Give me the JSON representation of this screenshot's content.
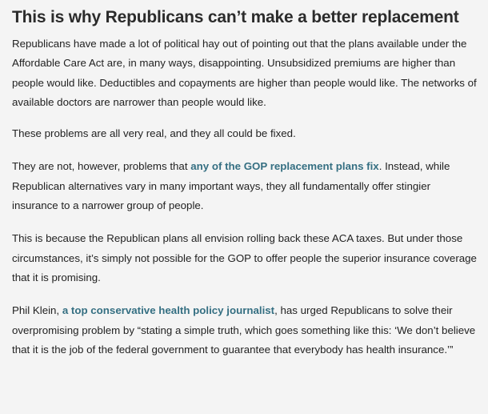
{
  "article": {
    "headline": "This is why Republicans can’t make a better replacement",
    "p1": "Republicans have made a lot of political hay out of pointing out that the plans available under the Affordable Care Act are, in many ways, disappointing. Unsubsidized premiums are higher than people would like. Deductibles and copayments are higher than people would like. The networks of available doctors are narrower than people would like.",
    "p2": "These problems are all very real, and they all could be fixed.",
    "p3": {
      "before": "They are not, however, problems that ",
      "link": "any of the GOP replacement plans fix",
      "after": ". Instead, while Republican alternatives vary in many important ways, they all fundamentally offer stingier insurance to a narrower group of people."
    },
    "p4": "This is because the Republican plans all envision rolling back these ACA taxes. But under those circumstances, it’s simply not possible for the GOP to offer people the superior insurance coverage that it is promising.",
    "p5": {
      "before": "Phil Klein, ",
      "link": "a top conservative health policy journalist",
      "after": ", has urged Republicans to solve their overpromising problem by “stating a simple truth, which goes something like this: ‘We don’t believe that it is the job of the federal government to guarantee that everybody has health insurance.’”"
    }
  },
  "colors": {
    "background": "#f4f4f4",
    "text": "#222222",
    "link": "#356f82"
  }
}
